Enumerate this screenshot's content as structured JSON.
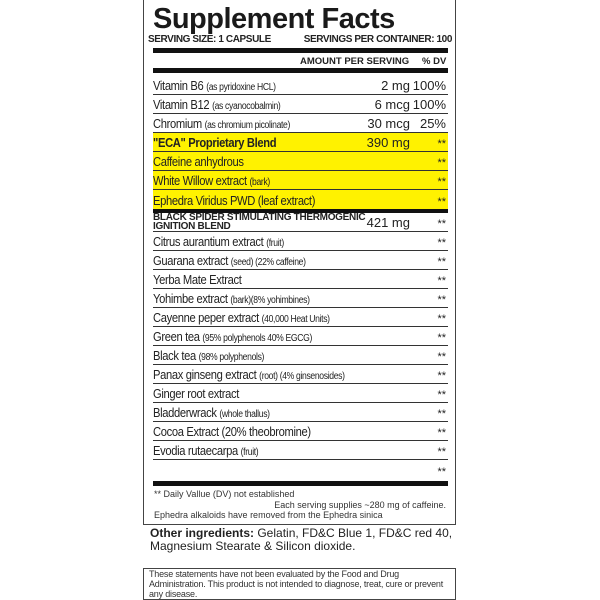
{
  "title": "Supplement Facts",
  "serving_size": "SERVING SIZE: 1 CAPSULE",
  "servings_per_container": "SERVINGS PER CONTAINER: 100",
  "header": {
    "amount": "AMOUNT PER SERVING",
    "dv": "% DV"
  },
  "highlight_color": "#fff200",
  "rows": [
    {
      "name": "Vitamin B6",
      "note": "(as pyridoxine HCL)",
      "amount": "2 mg",
      "dv": "100%"
    },
    {
      "name": "Vitamin B12",
      "note": "(as cyanocobalmin)",
      "amount": "6 mcg",
      "dv": "100%"
    },
    {
      "name": "Chromium",
      "note": "(as chromium picolinate)",
      "amount": "30 mcg",
      "dv": "25%"
    },
    {
      "name": "\"ECA\" Proprietary Blend",
      "note": "",
      "amount": "390 mg",
      "dv": "**",
      "highlight": true,
      "bold": true
    },
    {
      "name": "Caffeine anhydrous",
      "note": "",
      "amount": "",
      "dv": "**",
      "highlight": true
    },
    {
      "name": "White Willow extract",
      "note": "(bark)",
      "amount": "",
      "dv": "**",
      "highlight": true
    },
    {
      "name": "Ephedra Viridus PWD (leaf extract)",
      "note": "",
      "amount": "",
      "dv": "**",
      "highlight": true
    },
    {
      "name": "BLACK SPIDER STIMULATING THERMOGENIC IGNITION BLEND",
      "note": "",
      "amount": "421 mg",
      "dv": "**",
      "caps": true
    },
    {
      "name": "Citrus aurantium extract",
      "note": "(fruit)",
      "amount": "",
      "dv": "**"
    },
    {
      "name": "Guarana extract",
      "note": "(seed) (22% caffeine)",
      "amount": "",
      "dv": "**"
    },
    {
      "name": "Yerba Mate Extract",
      "note": "",
      "amount": "",
      "dv": "**"
    },
    {
      "name": "Yohimbe extract",
      "note": "(bark)(8% yohimbines)",
      "amount": "",
      "dv": "**"
    },
    {
      "name": "Cayenne peper extract",
      "note": "(40,000 Heat Units)",
      "amount": "",
      "dv": "**"
    },
    {
      "name": "Green tea",
      "note": "(95% polyphenols 40% EGCG)",
      "amount": "",
      "dv": "**"
    },
    {
      "name": "Black tea",
      "note": "(98% polyphenols)",
      "amount": "",
      "dv": "**"
    },
    {
      "name": "Panax ginseng extract",
      "note": "(root) (4% ginsenosides)",
      "amount": "",
      "dv": "**"
    },
    {
      "name": "Ginger root extract",
      "note": "",
      "amount": "",
      "dv": "**"
    },
    {
      "name": "Bladderwrack",
      "note": "(whole thallus)",
      "amount": "",
      "dv": "**"
    },
    {
      "name": "Cocoa Extract (20% theobromine)",
      "note": "",
      "amount": "",
      "dv": "**"
    },
    {
      "name": "Evodia rutaecarpa",
      "note": "(fruit)",
      "amount": "",
      "dv": "**"
    },
    {
      "name": "",
      "note": "",
      "amount": "",
      "dv": "**"
    }
  ],
  "footnotes": {
    "dv": "** Daily Vallue (DV) not established",
    "caffeine": "Each serving supplies ~280 mg of caffeine.",
    "ephedra": "Ephedra alkaloids have removed from the Ephedra sinica"
  },
  "other_ingredients": {
    "label": "Other ingredients:",
    "text": " Gelatin, FD&C Blue 1, FD&C red 40, Magnesium Stearate & Silicon dioxide."
  },
  "disclaimer": [
    "These statements have not been evaluated by the Food and Drug Administration.",
    "This product is not intended to diagnose, treat, cure or prevent any disease."
  ]
}
